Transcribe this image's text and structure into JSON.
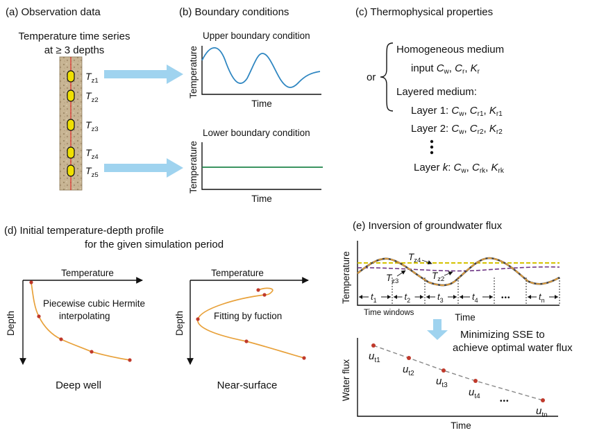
{
  "panel_a": {
    "title": "(a) Observation data",
    "line1": "Temperature time series",
    "line2": "at ≥ 3 depths",
    "sensors": [
      {
        "main": "T",
        "sub": "z1"
      },
      {
        "main": "T",
        "sub": "z2"
      },
      {
        "main": "T",
        "sub": "z3"
      },
      {
        "main": "T",
        "sub": "z4"
      },
      {
        "main": "T",
        "sub": "z5"
      }
    ]
  },
  "panel_b": {
    "title": "(b) Boundary conditions",
    "upper": {
      "label": "Upper boundary condition",
      "ylabel": "Temperature",
      "xlabel": "Time"
    },
    "lower": {
      "label": "Lower boundary condition",
      "ylabel": "Temperature",
      "xlabel": "Time"
    }
  },
  "panel_c": {
    "title": "(c) Thermophysical properties",
    "or": "or",
    "homogeneous": "Homogeneous medium",
    "input_prefix": "input",
    "layered": "Layered medium:",
    "C": "C",
    "K": "K",
    "sub_w": "w",
    "sub_r": "r",
    "layers": [
      {
        "name": "Layer 1:",
        "sub_c": "r1",
        "sub_k": "r1"
      },
      {
        "name": "Layer 2:",
        "sub_c": "r2",
        "sub_k": "r2"
      },
      {
        "name_prefix": "Layer ",
        "name_var": "k",
        "name_suffix": ":",
        "sub_c": "rk",
        "sub_k": "rk"
      }
    ]
  },
  "panel_d": {
    "title1": "(d)   Initial temperature-depth profile",
    "title2": "for the given simulation period",
    "left": {
      "xlabel": "Temperature",
      "ylabel": "Depth",
      "note1": "Piecewise cubic Hermite",
      "note2": "interpolating",
      "caption": "Deep well"
    },
    "right": {
      "xlabel": "Temperature",
      "ylabel": "Depth",
      "note": "Fitting by fuction",
      "caption": "Near-surface"
    }
  },
  "panel_e": {
    "title": "(e) Inversion of  groundwater flux",
    "ylabel": "Temperature",
    "xlabel": "Time",
    "time_windows": "Time windows",
    "series_labels": [
      {
        "main": "T",
        "sub": "z4"
      },
      {
        "main": "T",
        "sub": "z3"
      },
      {
        "main": "T",
        "sub": "z2"
      }
    ],
    "windows": [
      {
        "main": "t",
        "sub": "1"
      },
      {
        "main": "t",
        "sub": "2"
      },
      {
        "main": "t",
        "sub": "3"
      },
      {
        "main": "t",
        "sub": "4"
      },
      {
        "main": "t",
        "sub": "n"
      }
    ],
    "ellipsis": "•••",
    "minimize1": "Minimizing SSE to",
    "minimize2": "achieve optimal water flux",
    "flux": {
      "ylabel": "Water flux",
      "xlabel": "Time",
      "points": [
        {
          "main": "u",
          "sub": "t1"
        },
        {
          "main": "u",
          "sub": "t2"
        },
        {
          "main": "u",
          "sub": "t3"
        },
        {
          "main": "u",
          "sub": "t4"
        },
        {
          "main": "u",
          "sub": "tn"
        }
      ]
    }
  },
  "colors": {
    "blue_curve": "#2e86c1",
    "green_line": "#1e8449",
    "orange_curve": "#e8a13a",
    "red_point": "#c0392b",
    "arrow_blue": "#9fd3ef",
    "soil": "#c8b594",
    "sensor_yellow": "#f0e000",
    "dash_yellow": "#d4c200",
    "dash_purple": "#6c3483",
    "flux_dash": "#888888"
  }
}
